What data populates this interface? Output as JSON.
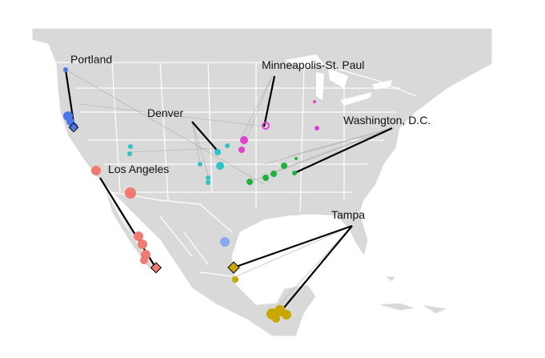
{
  "labels": [
    "Portland",
    "Minneapolis-St. Paul",
    "Denver",
    "Washington, D.C.",
    "Los Angeles",
    "Tampa"
  ]
}
